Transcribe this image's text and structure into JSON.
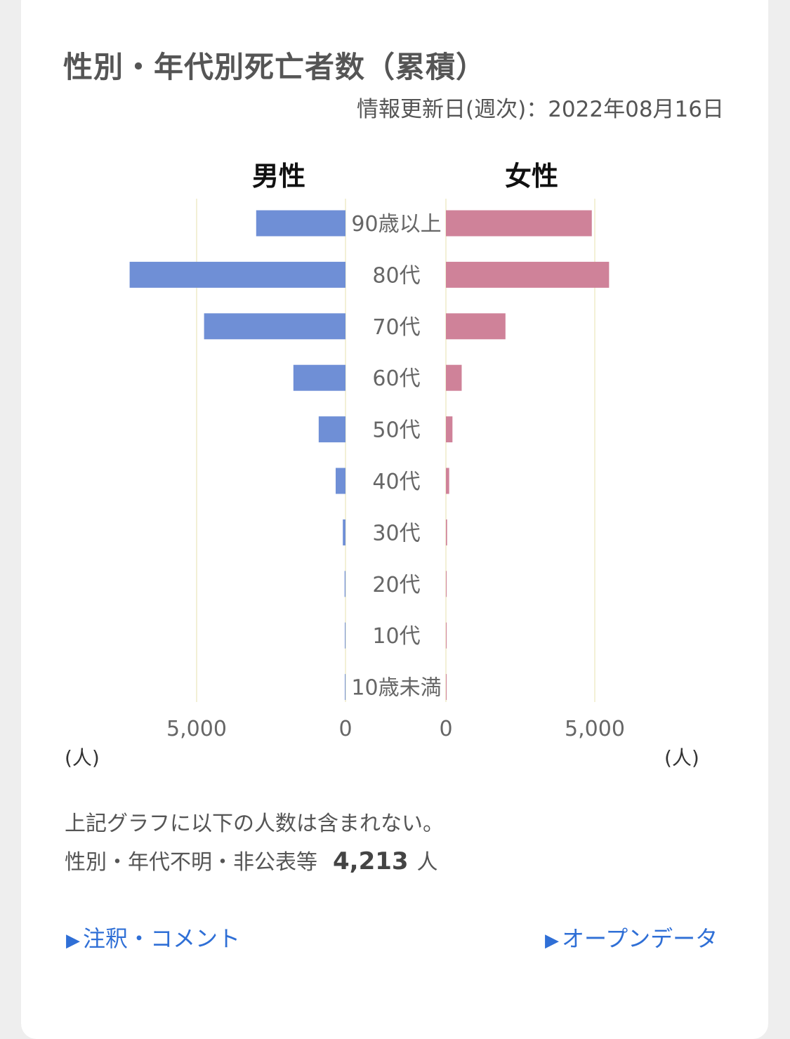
{
  "title": "性別・年代別死亡者数（累積）",
  "updated": "情報更新日(週次)：2022年08月16日",
  "colors": {
    "male": "#6f8fd6",
    "female": "#cf8299",
    "grid": "#f3f0d6",
    "label": "#666666",
    "link": "#2f6fd6"
  },
  "chart_data": {
    "type": "bar",
    "orientation": "horizontal",
    "layout": "population-pyramid",
    "categories": [
      "90歳以上",
      "80代",
      "70代",
      "60代",
      "50代",
      "40代",
      "30代",
      "20代",
      "10代",
      "10歳未満"
    ],
    "series": [
      {
        "name": "男性",
        "values": [
          3000,
          7250,
          4750,
          1750,
          900,
          330,
          90,
          30,
          8,
          4
        ]
      },
      {
        "name": "女性",
        "values": [
          4900,
          5480,
          2000,
          530,
          220,
          110,
          40,
          12,
          4,
          3
        ]
      }
    ],
    "xlim": [
      0,
      8000
    ],
    "ticks": [
      {
        "value": 5000,
        "label": "5,000"
      },
      {
        "value": 0,
        "label": "0"
      }
    ],
    "unit": "(人)",
    "grid": true
  },
  "note": {
    "line1": "上記グラフに以下の人数は含まれない。",
    "line2": "性別・年代不明・非公表等",
    "count": "4,213",
    "count_unit": "人"
  },
  "links": {
    "arrow": "▶",
    "comments": "注釈・コメント",
    "open_data": "オープンデータ"
  }
}
